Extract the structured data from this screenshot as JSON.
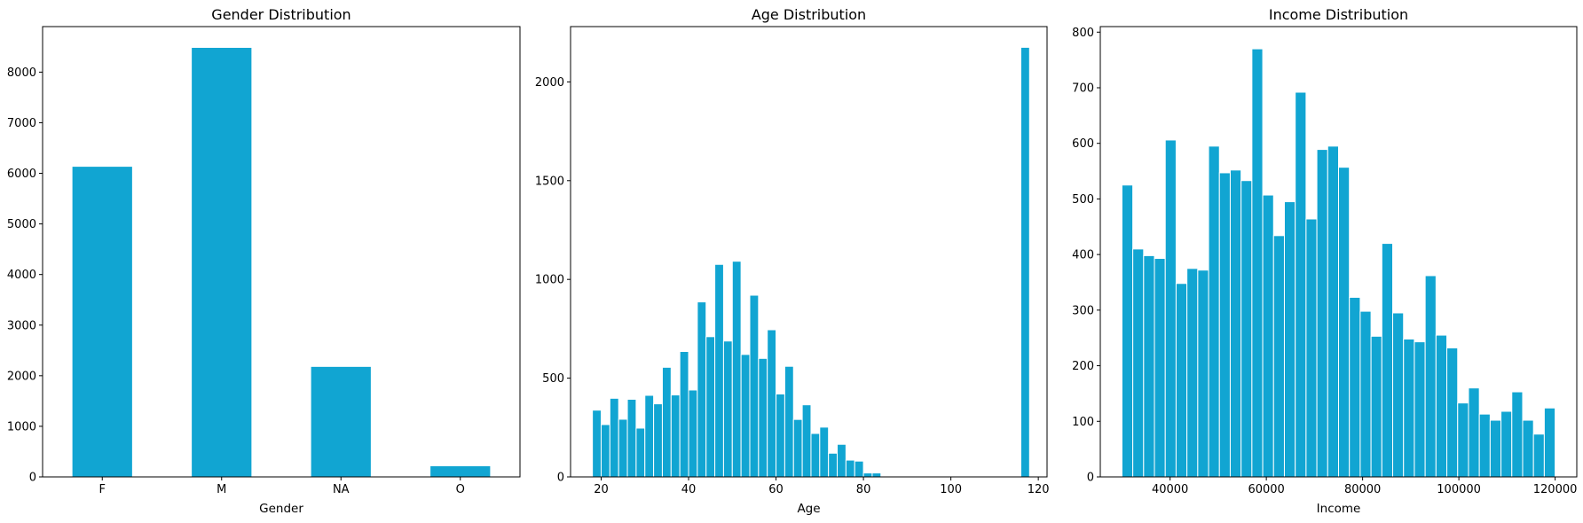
{
  "chart_data": [
    {
      "type": "bar",
      "title": "Gender Distribution",
      "xlabel": "Gender",
      "ylabel": "",
      "categories": [
        "F",
        "M",
        "NA",
        "O"
      ],
      "values": [
        6130,
        8480,
        2175,
        212
      ],
      "ylim": [
        0,
        8900
      ],
      "yticks": [
        0,
        1000,
        2000,
        3000,
        4000,
        5000,
        6000,
        7000,
        8000
      ],
      "color": "#11a5d2",
      "grid": false
    },
    {
      "type": "bar",
      "title": "Age Distribution",
      "xlabel": "Age",
      "ylabel": "",
      "bins": {
        "start": 18,
        "width": 2.0
      },
      "values": [
        338,
        265,
        398,
        292,
        393,
        247,
        413,
        370,
        555,
        415,
        635,
        440,
        886,
        710,
        1076,
        688,
        1092,
        620,
        920,
        600,
        745,
        420,
        560,
        291,
        365,
        220,
        252,
        120,
        165,
        85,
        80,
        20,
        20,
        0,
        0,
        0,
        0,
        0,
        0,
        0,
        0,
        0,
        0,
        0,
        0,
        0,
        0,
        0,
        0,
        2175
      ],
      "xlim": [
        13,
        122
      ],
      "ylim": [
        0,
        2280
      ],
      "xticks": [
        20,
        40,
        60,
        80,
        100,
        120
      ],
      "yticks": [
        0,
        500,
        1000,
        1500,
        2000
      ],
      "color": "#11a5d2",
      "grid": false
    },
    {
      "type": "bar",
      "title": "Income Distribution",
      "xlabel": "Income",
      "ylabel": "",
      "bins": {
        "start": 30000,
        "width": 2250
      },
      "values": [
        525,
        410,
        398,
        393,
        606,
        348,
        375,
        372,
        595,
        547,
        552,
        533,
        770,
        507,
        434,
        495,
        692,
        464,
        589,
        595,
        557,
        323,
        298,
        253,
        420,
        295,
        248,
        243,
        362,
        255,
        232,
        133,
        160,
        113,
        102,
        118,
        153,
        102,
        77,
        124
      ],
      "xlim": [
        25500,
        124500
      ],
      "ylim": [
        0,
        810
      ],
      "xticks": [
        40000,
        60000,
        80000,
        100000,
        120000
      ],
      "yticks": [
        0,
        100,
        200,
        300,
        400,
        500,
        600,
        700,
        800
      ],
      "color": "#11a5d2",
      "grid": false
    }
  ]
}
